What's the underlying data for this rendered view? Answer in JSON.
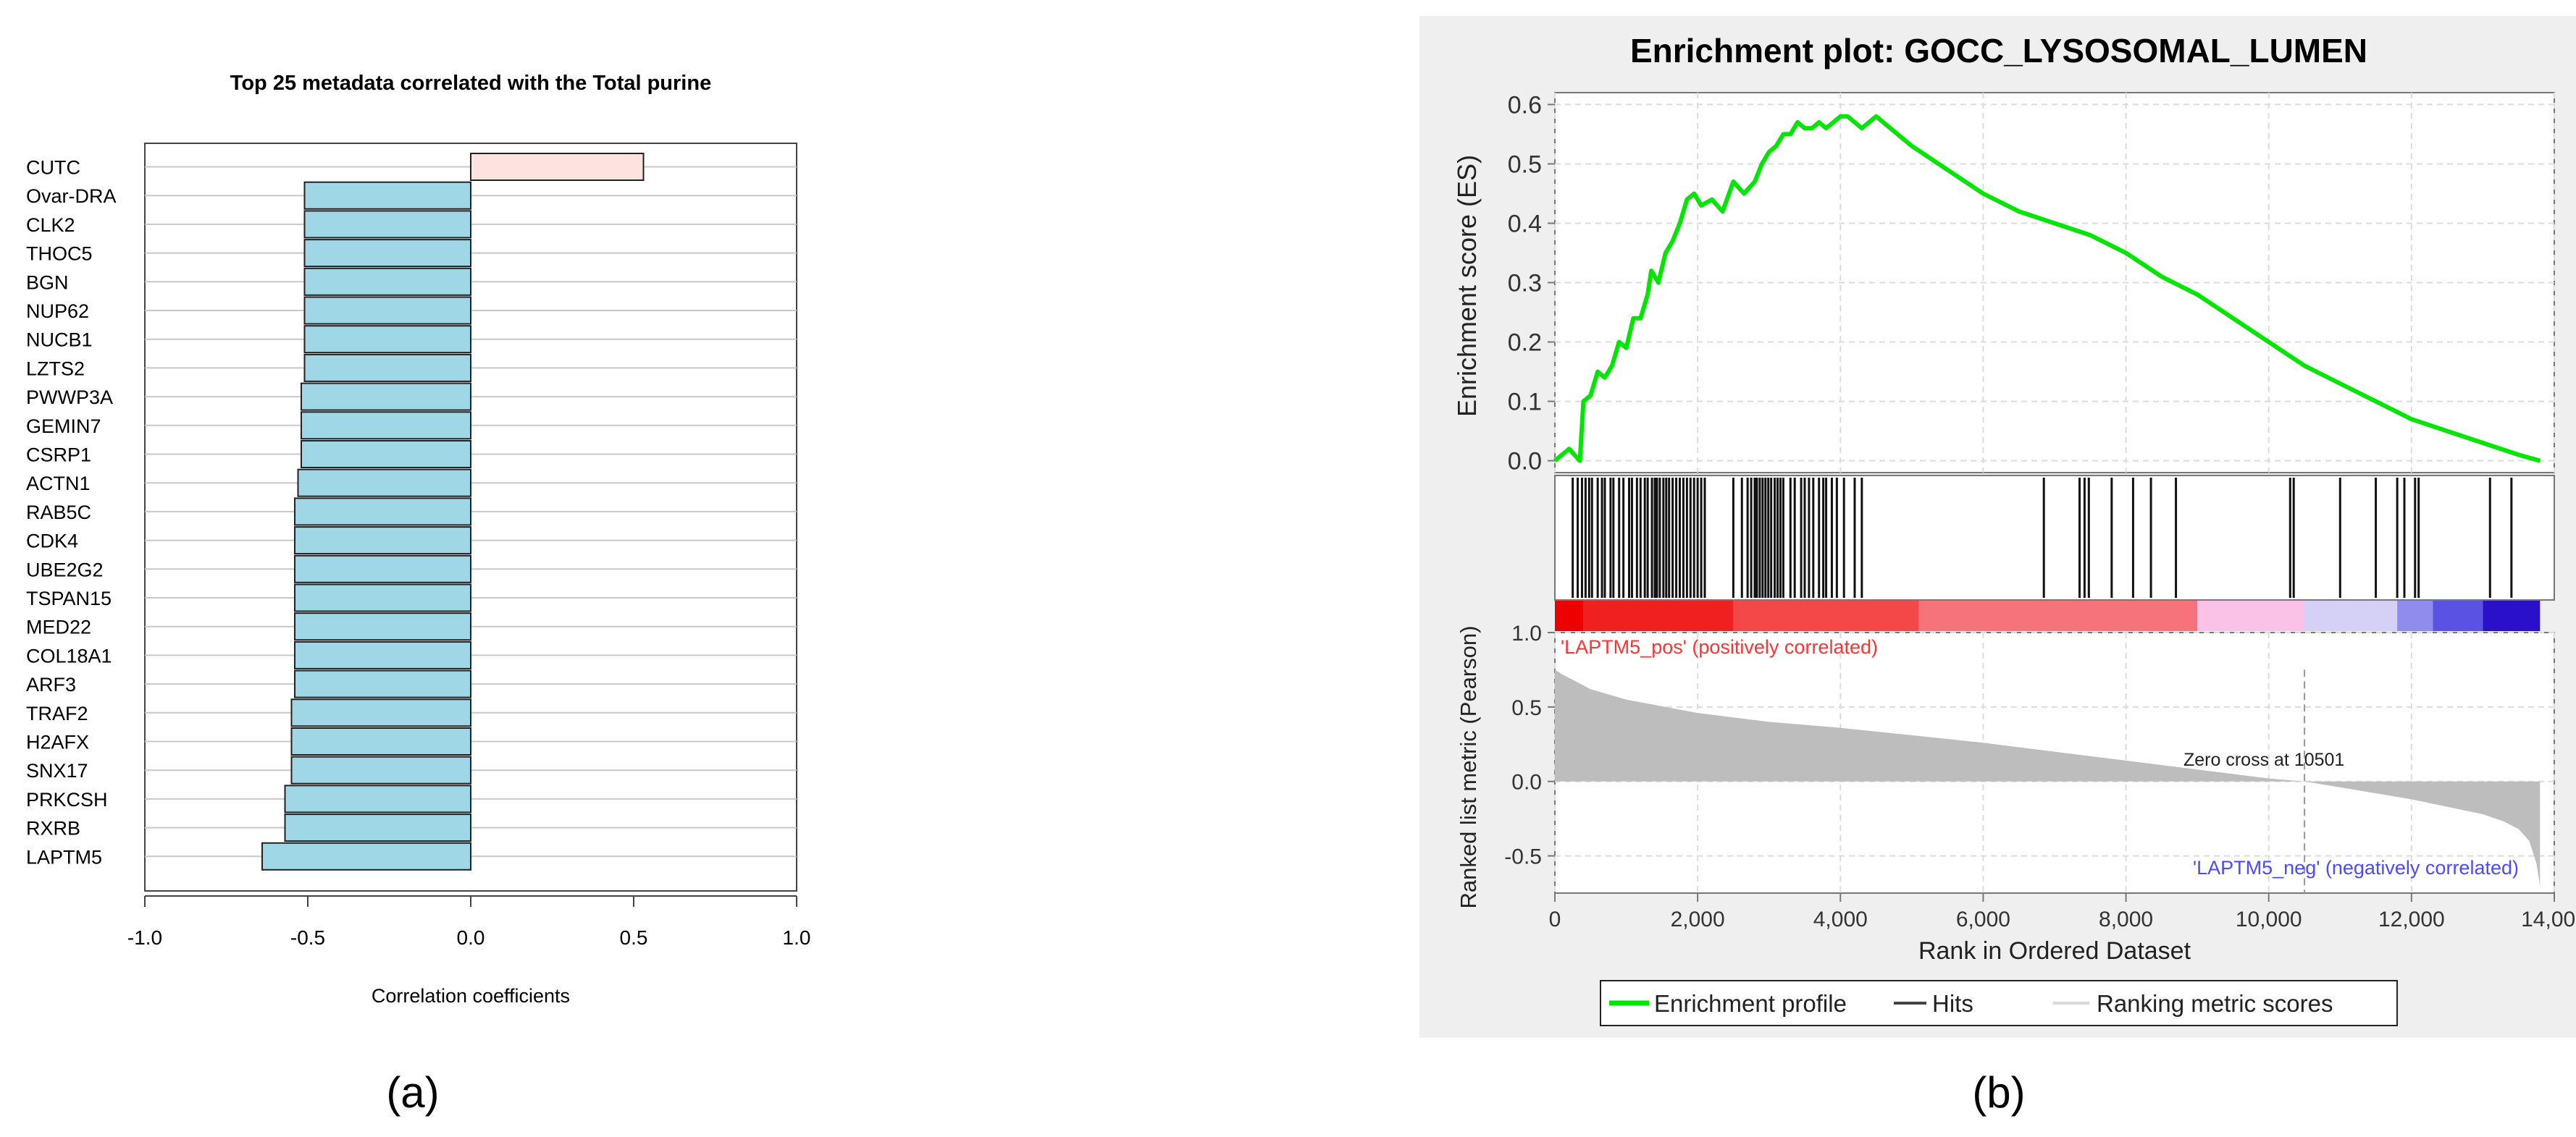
{
  "panel_labels": [
    "(a)",
    "(b)"
  ],
  "colors": {
    "positive_bar": "#fde3df",
    "negative_bar": "#a0d7e6",
    "bar_stroke": "#222222",
    "gsea_panel_bg": "#efefef",
    "enrichment_line": "#00e600",
    "hit_line": "#111111",
    "ranked_area": "#bdbdbd",
    "pos_label": "#ff3333",
    "neg_label": "#4a4aff"
  },
  "chart_data": [
    {
      "type": "bar",
      "orientation": "horizontal",
      "title": "Top 25 metadata correlated with the Total purine",
      "xlabel": "Correlation coefficients",
      "ylabel": "",
      "xlim": [
        -1.0,
        1.0
      ],
      "xticks": [
        "-1.0",
        "-0.5",
        "0.0",
        "0.5",
        "1.0"
      ],
      "grid": "horizontal",
      "categories": [
        "CUTC",
        "Ovar-DRA",
        "CLK2",
        "THOC5",
        "BGN",
        "NUP62",
        "NUCB1",
        "LZTS2",
        "PWWP3A",
        "GEMIN7",
        "CSRP1",
        "ACTN1",
        "RAB5C",
        "CDK4",
        "UBE2G2",
        "TSPAN15",
        "MED22",
        "COL18A1",
        "ARF3",
        "TRAF2",
        "H2AFX",
        "SNX17",
        "PRKCSH",
        "RXRB",
        "LAPTM5"
      ],
      "values": [
        0.53,
        -0.51,
        -0.51,
        -0.51,
        -0.51,
        -0.51,
        -0.51,
        -0.51,
        -0.52,
        -0.52,
        -0.52,
        -0.53,
        -0.54,
        -0.54,
        -0.54,
        -0.54,
        -0.54,
        -0.54,
        -0.54,
        -0.55,
        -0.55,
        -0.55,
        -0.57,
        -0.57,
        -0.64
      ]
    },
    {
      "type": "line",
      "title": "Enrichment plot: GOCC_LYSOSOMAL_LUMEN",
      "xlabel": "Rank in Ordered Dataset",
      "xlim": [
        0,
        14000
      ],
      "xticks": [
        0,
        2000,
        4000,
        6000,
        8000,
        10000,
        12000,
        14000
      ],
      "xtick_labels": [
        "0",
        "2,000",
        "4,000",
        "6,000",
        "8,000",
        "10,000",
        "12,000",
        "14,000"
      ],
      "grid": true,
      "enrichment": {
        "ylabel": "Enrichment score (ES)",
        "ylim": [
          -0.02,
          0.62
        ],
        "yticks": [
          "0.6",
          "0.5",
          "0.4",
          "0.3",
          "0.2",
          "0.1",
          "0.0"
        ],
        "series_name": "Enrichment profile",
        "x": [
          0,
          200,
          350,
          400,
          500,
          600,
          700,
          800,
          900,
          1000,
          1100,
          1200,
          1300,
          1350,
          1450,
          1550,
          1650,
          1750,
          1850,
          1950,
          2050,
          2200,
          2350,
          2500,
          2650,
          2800,
          2900,
          3000,
          3100,
          3200,
          3300,
          3400,
          3500,
          3600,
          3700,
          3800,
          3900,
          4000,
          4100,
          4200,
          4300,
          4400,
          4500,
          4700,
          5000,
          5500,
          6000,
          6500,
          7000,
          7500,
          8000,
          8500,
          9000,
          9500,
          10000,
          10500,
          11000,
          11500,
          12000,
          12500,
          13000,
          13500,
          13800
        ],
        "y": [
          0.0,
          0.02,
          0.0,
          0.1,
          0.11,
          0.15,
          0.14,
          0.16,
          0.2,
          0.19,
          0.24,
          0.24,
          0.28,
          0.32,
          0.3,
          0.35,
          0.37,
          0.4,
          0.44,
          0.45,
          0.43,
          0.44,
          0.42,
          0.47,
          0.45,
          0.47,
          0.5,
          0.52,
          0.53,
          0.55,
          0.55,
          0.57,
          0.56,
          0.56,
          0.57,
          0.56,
          0.57,
          0.58,
          0.58,
          0.57,
          0.56,
          0.57,
          0.58,
          0.56,
          0.53,
          0.49,
          0.45,
          0.42,
          0.4,
          0.38,
          0.35,
          0.31,
          0.28,
          0.24,
          0.2,
          0.16,
          0.13,
          0.1,
          0.07,
          0.05,
          0.03,
          0.01,
          0.0
        ]
      },
      "hits": {
        "name": "Hits",
        "x": [
          250,
          320,
          380,
          430,
          480,
          520,
          600,
          660,
          700,
          780,
          820,
          900,
          960,
          1040,
          1080,
          1150,
          1200,
          1260,
          1300,
          1360,
          1400,
          1430,
          1470,
          1520,
          1560,
          1600,
          1650,
          1700,
          1750,
          1800,
          1850,
          1900,
          1950,
          2000,
          2050,
          2100,
          2500,
          2620,
          2700,
          2750,
          2800,
          2830,
          2870,
          2910,
          2950,
          2990,
          3030,
          3080,
          3120,
          3160,
          3200,
          3300,
          3360,
          3450,
          3500,
          3560,
          3620,
          3700,
          3760,
          3800,
          3880,
          3950,
          4050,
          4200,
          4300,
          6850,
          7350,
          7420,
          7480,
          7800,
          8100,
          8350,
          8700,
          10300,
          10350,
          11000,
          11500,
          11800,
          11900,
          12050,
          12100,
          13100,
          13400
        ]
      },
      "ranking_colorbar": {
        "segments": [
          {
            "start": 0,
            "end": 400,
            "color": "#ee0000"
          },
          {
            "start": 400,
            "end": 2500,
            "color": "#f02020"
          },
          {
            "start": 2500,
            "end": 5100,
            "color": "#f44848"
          },
          {
            "start": 5100,
            "end": 9000,
            "color": "#f6737b"
          },
          {
            "start": 9000,
            "end": 10500,
            "color": "#f9c2e6"
          },
          {
            "start": 10500,
            "end": 11800,
            "color": "#d5d0f6"
          },
          {
            "start": 11800,
            "end": 12300,
            "color": "#8f8cee"
          },
          {
            "start": 12300,
            "end": 13000,
            "color": "#5a52e2"
          },
          {
            "start": 13000,
            "end": 13800,
            "color": "#2a10c8"
          }
        ]
      },
      "ranked_metric": {
        "name": "Ranking metric scores",
        "ylabel": "Ranked list metric (Pearson)",
        "ylim": [
          -0.75,
          1.0
        ],
        "yticks": [
          "1.0",
          "0.5",
          "0.0",
          "-0.5"
        ],
        "x": [
          0,
          100,
          500,
          1000,
          2000,
          3000,
          4000,
          5000,
          6000,
          7000,
          8000,
          9000,
          10000,
          10501,
          11000,
          12000,
          12500,
          13000,
          13300,
          13500,
          13650,
          13750,
          13800
        ],
        "y": [
          0.75,
          0.72,
          0.62,
          0.55,
          0.46,
          0.4,
          0.36,
          0.31,
          0.26,
          0.2,
          0.14,
          0.08,
          0.02,
          0.0,
          -0.04,
          -0.12,
          -0.17,
          -0.22,
          -0.27,
          -0.32,
          -0.4,
          -0.55,
          -0.7
        ],
        "zero_cross_x": 10501,
        "zero_cross_label": "Zero cross at 10501",
        "pos_label": "'LAPTM5_pos' (positively correlated)",
        "neg_label": "'LAPTM5_neg' (negatively correlated)"
      },
      "legend": {
        "position": "bottom",
        "items": [
          "Enrichment profile",
          "Hits",
          "Ranking metric scores"
        ]
      }
    }
  ]
}
